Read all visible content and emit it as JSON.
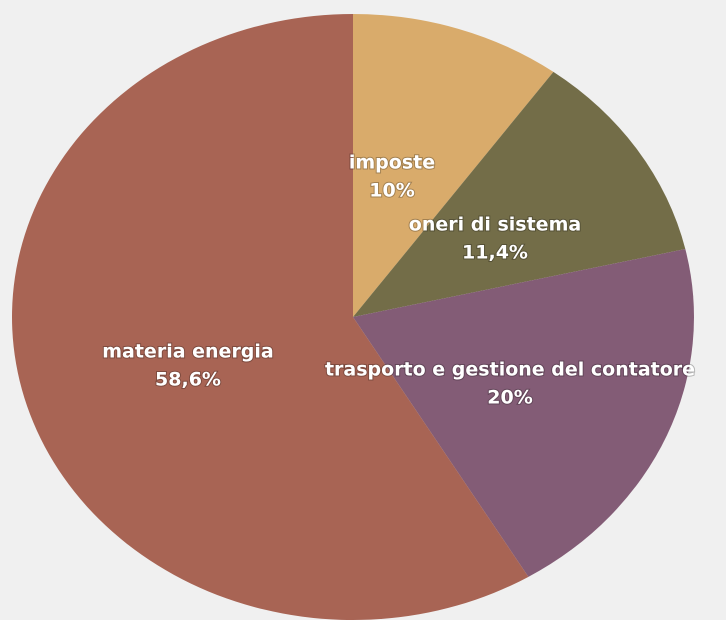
{
  "chart_data": {
    "type": "pie",
    "categories": [
      "imposte",
      "oneri di sistema",
      "trasporto e gestione del contatore",
      "materia energia"
    ],
    "values": [
      10,
      11.4,
      20,
      58.6
    ],
    "value_labels": [
      "10%",
      "11,4%",
      "20%",
      "58,6%"
    ],
    "colors": [
      "#d9ab6b",
      "#736d48",
      "#835c76",
      "#a86454"
    ]
  }
}
